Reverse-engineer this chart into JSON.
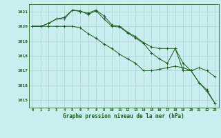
{
  "title": "Graphe pression niveau de la mer (hPa)",
  "bg_color": "#c8eef0",
  "grid_color": "#b0cece",
  "line_color": "#1a5c1a",
  "xlim": [
    -0.5,
    23.5
  ],
  "ylim": [
    1014.5,
    1021.5
  ],
  "yticks": [
    1015,
    1016,
    1017,
    1018,
    1019,
    1020,
    1021
  ],
  "xticks": [
    0,
    1,
    2,
    3,
    4,
    5,
    6,
    7,
    8,
    9,
    10,
    11,
    12,
    13,
    14,
    15,
    16,
    17,
    18,
    19,
    20,
    21,
    22,
    23
  ],
  "series1_x": [
    0,
    1,
    2,
    3,
    4,
    5,
    6,
    7,
    8,
    9,
    10,
    11,
    12,
    13,
    14,
    15,
    16,
    17,
    18,
    19,
    20,
    21,
    22,
    23
  ],
  "series1": [
    1020.0,
    1020.0,
    1020.2,
    1020.5,
    1020.5,
    1021.1,
    1021.05,
    1020.8,
    1021.05,
    1020.5,
    1020.0,
    1019.95,
    1019.55,
    1019.2,
    1018.85,
    1018.2,
    1017.8,
    1017.5,
    1018.5,
    1017.5,
    1017.0,
    1017.2,
    1017.0,
    1016.6
  ],
  "series2_x": [
    0,
    1,
    2,
    3,
    4,
    5,
    6,
    7,
    8,
    9,
    10,
    11,
    12,
    13,
    14,
    15,
    16,
    17,
    18,
    19,
    20,
    21,
    22,
    23
  ],
  "series2": [
    1020.0,
    1020.0,
    1020.2,
    1020.5,
    1020.6,
    1021.1,
    1021.0,
    1020.9,
    1021.1,
    1020.7,
    1020.1,
    1020.0,
    1019.6,
    1019.3,
    1018.9,
    1018.6,
    1018.5,
    1018.5,
    1018.5,
    1017.0,
    1017.0,
    1016.2,
    1015.7,
    1014.8
  ],
  "series3_x": [
    0,
    1,
    2,
    3,
    4,
    5,
    6,
    7,
    8,
    9,
    10,
    11,
    12,
    13,
    14,
    15,
    16,
    17,
    18,
    19,
    20,
    21,
    22,
    23
  ],
  "series3": [
    1020.0,
    1020.0,
    1020.0,
    1020.0,
    1020.0,
    1020.0,
    1019.9,
    1019.5,
    1019.2,
    1018.8,
    1018.5,
    1018.1,
    1017.8,
    1017.5,
    1017.0,
    1017.0,
    1017.1,
    1017.2,
    1017.3,
    1017.2,
    1017.0,
    1016.2,
    1015.6,
    1014.8
  ]
}
